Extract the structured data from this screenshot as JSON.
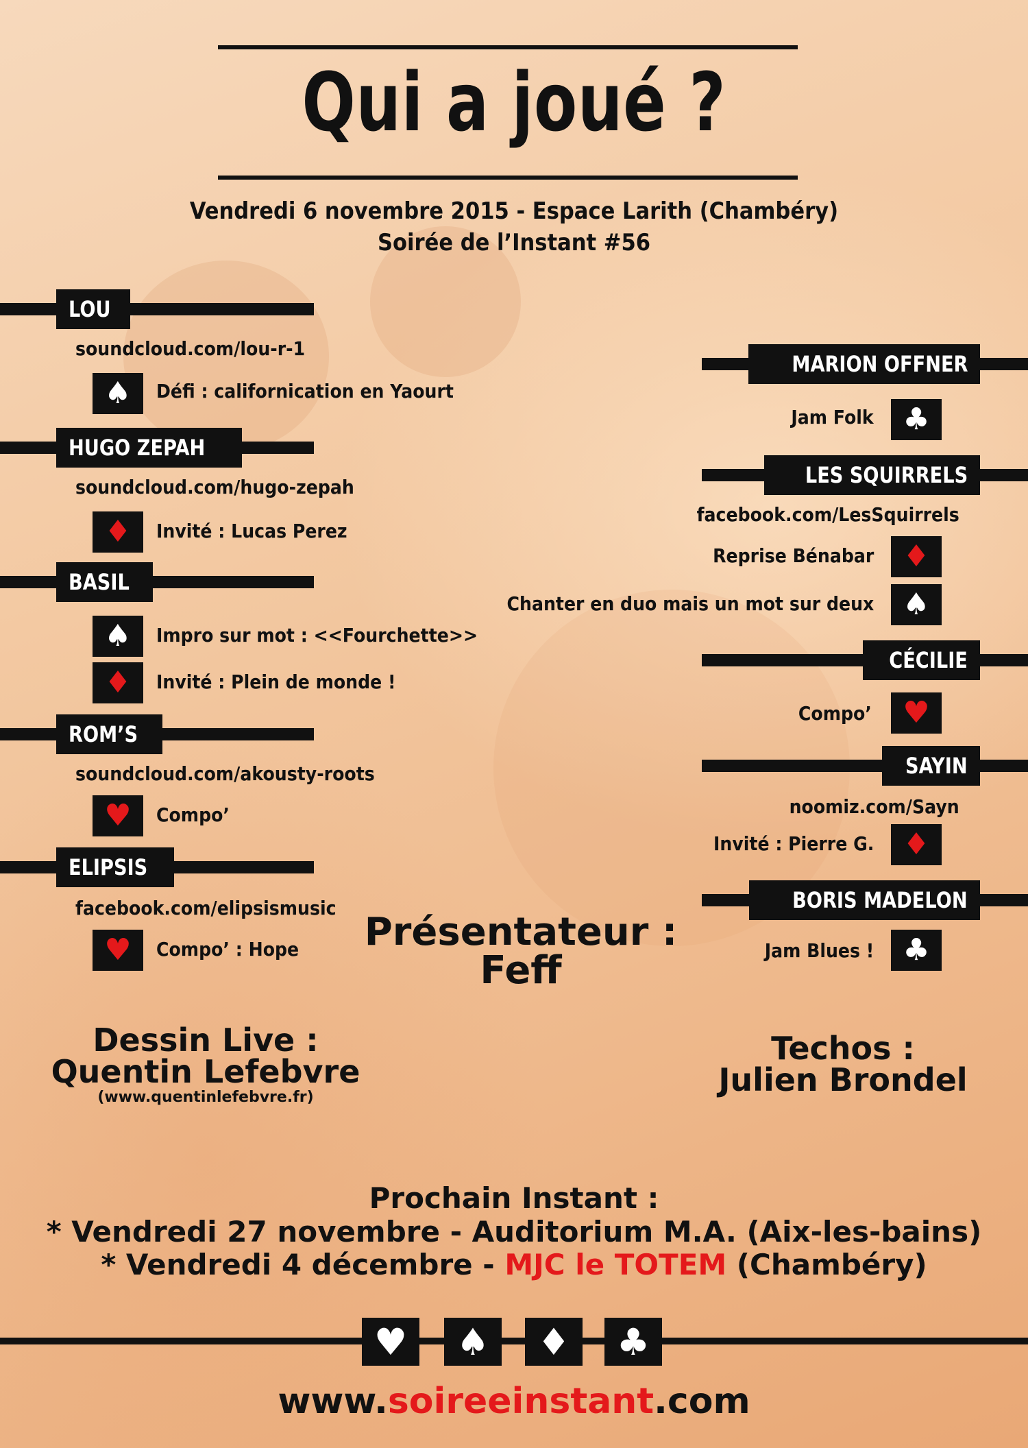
{
  "title": "Qui a joué ?",
  "subtitle_line1": "Vendredi 6 novembre 2015 - Espace Larith (Chambéry)",
  "subtitle_line2": "Soirée de l’Instant #56",
  "left_artists": [
    {
      "name": "LOU",
      "link": "soundcloud.com/lou-r-1",
      "items": [
        {
          "suit": "spade",
          "text": "Défi : californication en Yaourt"
        }
      ]
    },
    {
      "name": "HUGO ZEPAH",
      "link": "soundcloud.com/hugo-zepah",
      "items": [
        {
          "suit": "diamond",
          "text": "Invité : Lucas Perez"
        }
      ]
    },
    {
      "name": "BASIL",
      "link": "",
      "items": [
        {
          "suit": "spade",
          "text": "Impro sur mot : <<Fourchette>>"
        },
        {
          "suit": "diamond",
          "text": "Invité : Plein de monde !"
        }
      ]
    },
    {
      "name": "ROM’S",
      "link": "soundcloud.com/akousty-roots",
      "items": [
        {
          "suit": "heart",
          "text": "Compo’"
        }
      ]
    },
    {
      "name": "ELIPSIS",
      "link": "facebook.com/elipsismusic",
      "items": [
        {
          "suit": "heart",
          "text": "Compo’ : Hope"
        }
      ]
    }
  ],
  "right_artists": [
    {
      "name": "MARION OFFNER",
      "link": "",
      "items": [
        {
          "suit": "club",
          "text": "Jam Folk"
        }
      ]
    },
    {
      "name": "LES SQUIRRELS",
      "link": "facebook.com/LesSquirrels",
      "items": [
        {
          "suit": "diamond",
          "text": "Reprise Bénabar"
        },
        {
          "suit": "spade",
          "text": "Chanter en duo mais un mot sur deux"
        }
      ]
    },
    {
      "name": "CÉCILIE",
      "link": "",
      "items": [
        {
          "suit": "heart",
          "text": "Compo’"
        }
      ]
    },
    {
      "name": "SAYIN",
      "link": "noomiz.com/Sayn",
      "items": [
        {
          "suit": "diamond",
          "text": "Invité : Pierre G."
        }
      ]
    },
    {
      "name": "BORIS MADELON",
      "link": "",
      "items": [
        {
          "suit": "club",
          "text": "Jam Blues !"
        }
      ]
    }
  ],
  "presenter": {
    "label": "Présentateur :",
    "name": "Feff"
  },
  "drawing": {
    "label": "Dessin Live :",
    "name": "Quentin Lefebvre",
    "site": "(www.quentinlefebvre.fr)"
  },
  "techs": {
    "label": "Techos :",
    "name": "Julien Brondel"
  },
  "next": {
    "heading": "Prochain Instant :",
    "line1": "* Vendredi 27 novembre - Auditorium M.A. (Aix-les-bains)",
    "line2_prefix": "* Vendredi 4 décembre - ",
    "line2_venue": "MJC le TOTEM",
    "line2_suffix": " (Chambéry)"
  },
  "website": {
    "prefix": "www.",
    "brand": "soireeinstant",
    "suffix": ".com"
  },
  "colors": {
    "accent_red": "#e4191b",
    "ink": "#111111",
    "background": "#f3c9a2"
  },
  "suit_icons": {
    "heart": "♥",
    "spade": "♠",
    "diamond": "♦",
    "club": "♣"
  }
}
